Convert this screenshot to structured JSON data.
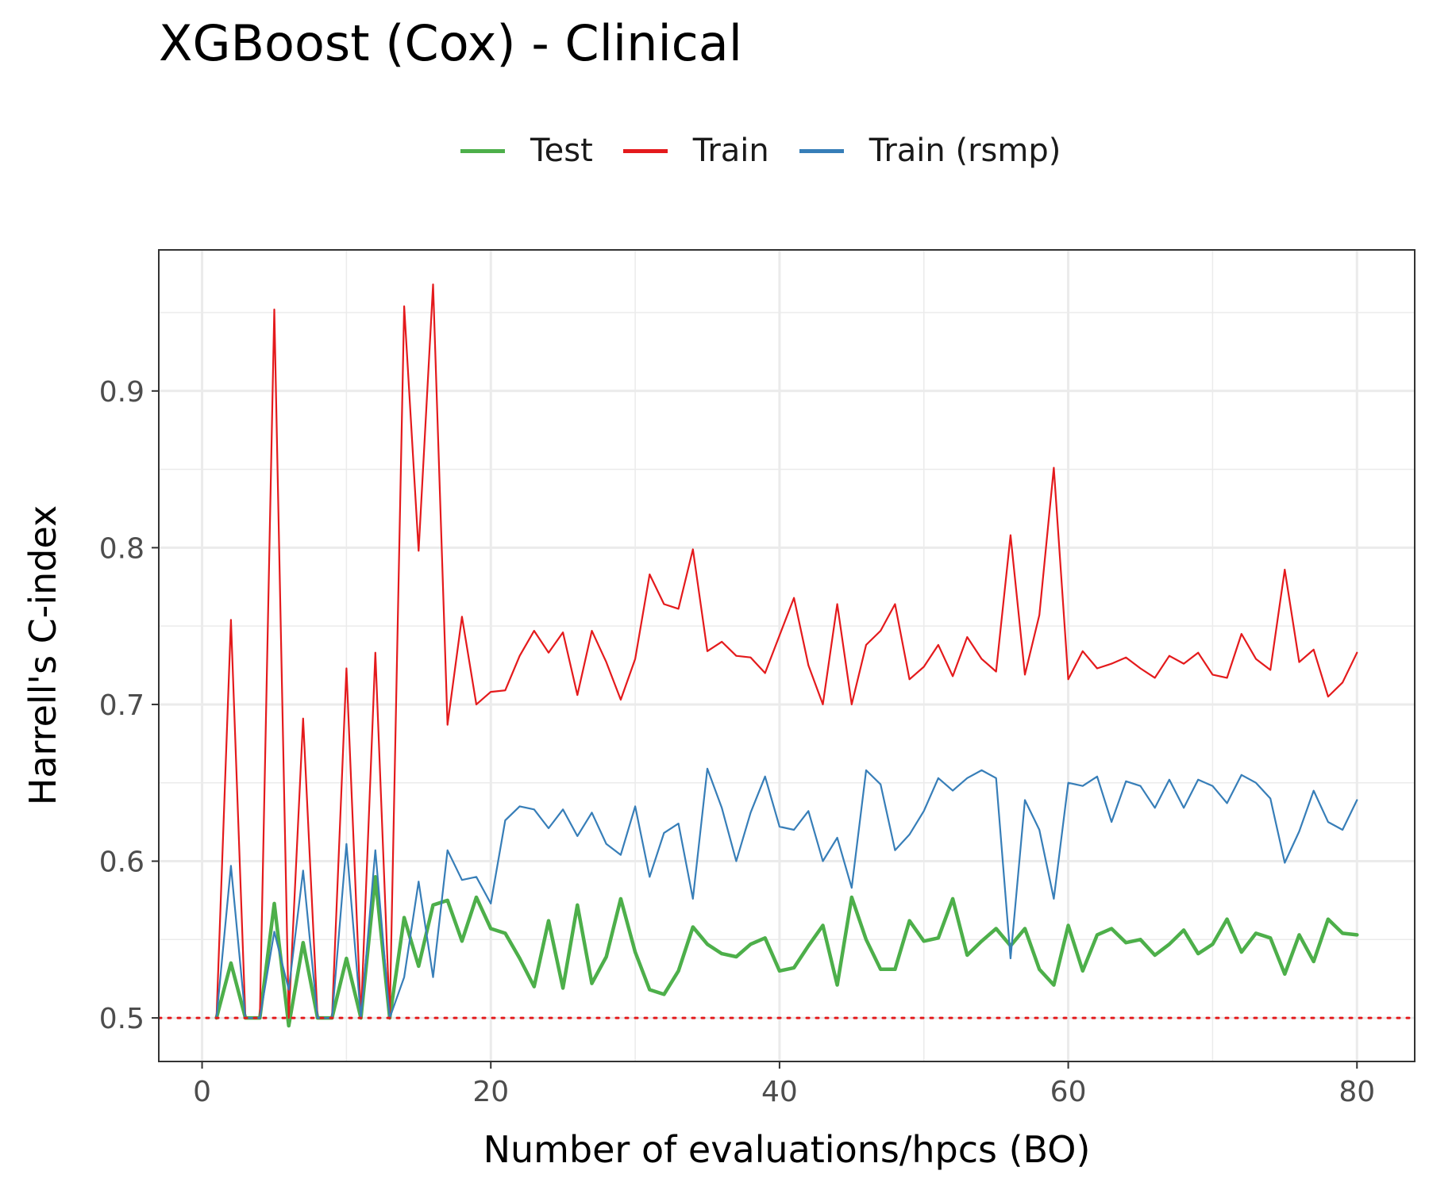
{
  "chart_data": {
    "type": "line",
    "title": "XGBoost (Cox) - Clinical",
    "xlabel": "Number of evaluations/hpcs (BO)",
    "ylabel": "Harrell's C-index",
    "xlim": [
      -3,
      84
    ],
    "ylim": [
      0.4722,
      0.99
    ],
    "xticks": [
      0,
      20,
      40,
      60,
      80
    ],
    "xtick_labels": [
      "0",
      "20",
      "40",
      "60",
      "80"
    ],
    "yticks": [
      0.5,
      0.6,
      0.7,
      0.8,
      0.9
    ],
    "ytick_labels": [
      "0.5",
      "0.6",
      "0.7",
      "0.8",
      "0.9"
    ],
    "grid": true,
    "legend_position": "top",
    "reference_line": {
      "y": 0.5,
      "color": "#e41a1c",
      "style": "dotted"
    },
    "x": [
      1,
      2,
      3,
      4,
      5,
      6,
      7,
      8,
      9,
      10,
      11,
      12,
      13,
      14,
      15,
      16,
      17,
      18,
      19,
      20,
      21,
      22,
      23,
      24,
      25,
      26,
      27,
      28,
      29,
      30,
      31,
      32,
      33,
      34,
      35,
      36,
      37,
      38,
      39,
      40,
      41,
      42,
      43,
      44,
      45,
      46,
      47,
      48,
      49,
      50,
      51,
      52,
      53,
      54,
      55,
      56,
      57,
      58,
      59,
      60,
      61,
      62,
      63,
      64,
      65,
      66,
      67,
      68,
      69,
      70,
      71,
      72,
      73,
      74,
      75,
      76,
      77,
      78,
      79,
      80
    ],
    "series": [
      {
        "name": "Test",
        "color": "#4daf4a",
        "width": 4.5,
        "values": [
          0.5,
          0.535,
          0.5,
          0.5,
          0.573,
          0.495,
          0.548,
          0.5,
          0.5,
          0.538,
          0.5,
          0.59,
          0.5,
          0.564,
          0.533,
          0.572,
          0.575,
          0.549,
          0.577,
          0.557,
          0.554,
          0.538,
          0.52,
          0.562,
          0.519,
          0.572,
          0.522,
          0.539,
          0.576,
          0.542,
          0.518,
          0.515,
          0.53,
          0.558,
          0.547,
          0.541,
          0.539,
          0.547,
          0.551,
          0.53,
          0.532,
          0.546,
          0.559,
          0.521,
          0.577,
          0.55,
          0.531,
          0.531,
          0.562,
          0.549,
          0.551,
          0.576,
          0.54,
          0.549,
          0.557,
          0.546,
          0.557,
          0.531,
          0.521,
          0.559,
          0.53,
          0.553,
          0.557,
          0.548,
          0.55,
          0.54,
          0.547,
          0.556,
          0.541,
          0.547,
          0.563,
          0.542,
          0.554,
          0.551,
          0.528,
          0.553,
          0.536,
          0.563,
          0.554,
          0.553
        ]
      },
      {
        "name": "Train",
        "color": "#e41a1c",
        "width": 2.2,
        "values": [
          0.5,
          0.754,
          0.5,
          0.5,
          0.952,
          0.5,
          0.691,
          0.5,
          0.5,
          0.723,
          0.5,
          0.733,
          0.5,
          0.954,
          0.798,
          0.968,
          0.687,
          0.756,
          0.7,
          0.708,
          0.709,
          0.731,
          0.747,
          0.733,
          0.746,
          0.706,
          0.747,
          0.727,
          0.703,
          0.729,
          0.783,
          0.764,
          0.761,
          0.799,
          0.734,
          0.74,
          0.731,
          0.73,
          0.72,
          0.744,
          0.768,
          0.725,
          0.7,
          0.764,
          0.7,
          0.738,
          0.747,
          0.764,
          0.716,
          0.724,
          0.738,
          0.718,
          0.743,
          0.729,
          0.721,
          0.808,
          0.719,
          0.757,
          0.851,
          0.716,
          0.734,
          0.723,
          0.726,
          0.73,
          0.723,
          0.717,
          0.731,
          0.726,
          0.733,
          0.719,
          0.717,
          0.745,
          0.729,
          0.722,
          0.786,
          0.727,
          0.735,
          0.705,
          0.714,
          0.733
        ]
      },
      {
        "name": "Train (rsmp)",
        "color": "#377eb8",
        "width": 2.2,
        "values": [
          0.5,
          0.597,
          0.5,
          0.5,
          0.555,
          0.518,
          0.594,
          0.5,
          0.5,
          0.611,
          0.5,
          0.607,
          0.5,
          0.526,
          0.587,
          0.526,
          0.607,
          0.588,
          0.59,
          0.573,
          0.626,
          0.635,
          0.633,
          0.621,
          0.633,
          0.616,
          0.631,
          0.611,
          0.604,
          0.635,
          0.59,
          0.618,
          0.624,
          0.576,
          0.659,
          0.634,
          0.6,
          0.631,
          0.654,
          0.622,
          0.62,
          0.632,
          0.6,
          0.615,
          0.583,
          0.658,
          0.649,
          0.607,
          0.617,
          0.632,
          0.653,
          0.645,
          0.653,
          0.658,
          0.653,
          0.538,
          0.639,
          0.62,
          0.576,
          0.65,
          0.648,
          0.654,
          0.625,
          0.651,
          0.648,
          0.634,
          0.652,
          0.634,
          0.652,
          0.648,
          0.637,
          0.655,
          0.65,
          0.64,
          0.599,
          0.619,
          0.645,
          0.625,
          0.62,
          0.639
        ]
      }
    ]
  }
}
